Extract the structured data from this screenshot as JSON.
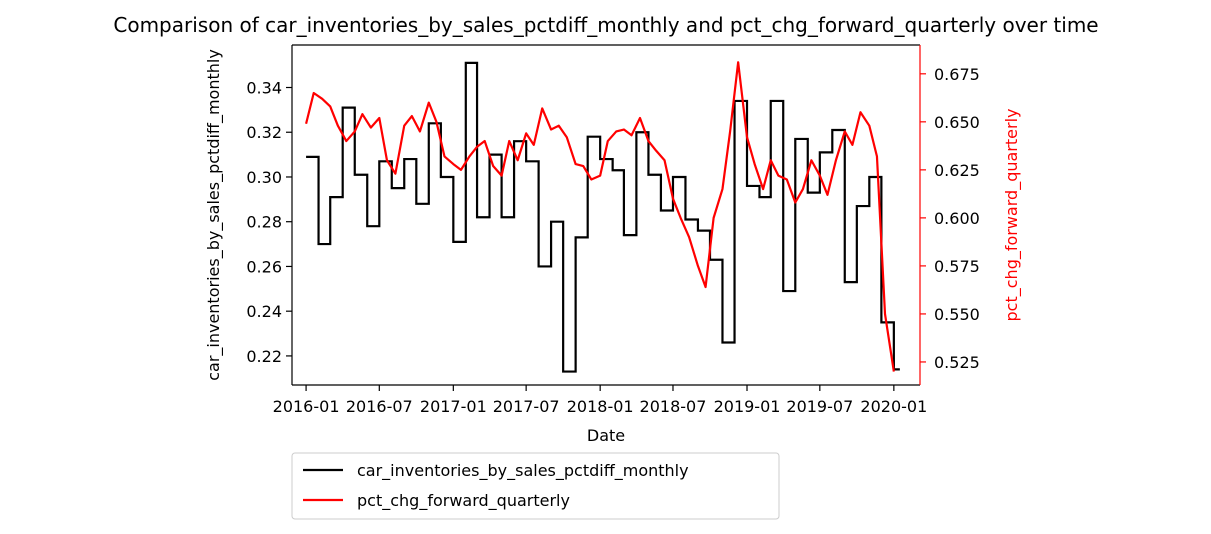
{
  "chart_data": {
    "type": "line",
    "title": "Comparison of car_inventories_by_sales_pctdiff_monthly and pct_chg_forward_quarterly over time",
    "xlabel": "Date",
    "ylabel_left": "car_inventories_by_sales_pctdiff_monthly",
    "ylabel_right": "pct_chg_forward_quarterly",
    "x_ticks": [
      "2016-01",
      "2016-07",
      "2017-01",
      "2017-07",
      "2018-01",
      "2018-07",
      "2019-01",
      "2019-07",
      "2020-01"
    ],
    "y_left_ticks": [
      "0.22",
      "0.24",
      "0.26",
      "0.28",
      "0.30",
      "0.32",
      "0.34"
    ],
    "y_right_ticks": [
      "0.525",
      "0.550",
      "0.575",
      "0.600",
      "0.625",
      "0.650",
      "0.675"
    ],
    "ylim_left": [
      0.207,
      0.359
    ],
    "ylim_right": [
      0.513,
      0.69
    ],
    "xlim": [
      "2015-11-27",
      "2020-03-06"
    ],
    "grid": false,
    "legend_position": "below",
    "colors": {
      "left_series": "#000000",
      "right_series": "#ff0000",
      "right_axis": "#ff0000"
    },
    "series": [
      {
        "name": "car_inventories_by_sales_pctdiff_monthly",
        "axis": "left",
        "x": [
          "2016-01-01",
          "2016-02-01",
          "2016-03-01",
          "2016-04-01",
          "2016-05-01",
          "2016-06-01",
          "2016-07-01",
          "2016-08-01",
          "2016-09-01",
          "2016-10-01",
          "2016-11-01",
          "2016-12-01",
          "2017-01-01",
          "2017-02-01",
          "2017-03-01",
          "2017-04-01",
          "2017-05-01",
          "2017-06-01",
          "2017-07-01",
          "2017-08-01",
          "2017-09-01",
          "2017-10-01",
          "2017-11-01",
          "2017-12-01",
          "2018-01-01",
          "2018-02-01",
          "2018-03-01",
          "2018-04-01",
          "2018-05-01",
          "2018-06-01",
          "2018-07-01",
          "2018-08-01",
          "2018-09-01",
          "2018-10-01",
          "2018-11-01",
          "2018-12-01",
          "2019-01-01",
          "2019-02-01",
          "2019-03-01",
          "2019-04-01",
          "2019-05-01",
          "2019-06-01",
          "2019-07-01",
          "2019-08-01",
          "2019-09-01",
          "2019-10-01",
          "2019-11-01",
          "2019-12-01",
          "2020-01-01"
        ],
        "values": [
          0.309,
          0.27,
          0.291,
          0.331,
          0.301,
          0.278,
          0.307,
          0.295,
          0.308,
          0.288,
          0.324,
          0.3,
          0.271,
          0.351,
          0.282,
          0.31,
          0.282,
          0.316,
          0.307,
          0.26,
          0.28,
          0.213,
          0.273,
          0.318,
          0.308,
          0.303,
          0.274,
          0.32,
          0.301,
          0.285,
          0.3,
          0.281,
          0.276,
          0.263,
          0.226,
          0.334,
          0.296,
          0.291,
          0.334,
          0.249,
          0.317,
          0.293,
          0.311,
          0.321,
          0.253,
          0.287,
          0.3,
          0.235,
          0.214
        ]
      },
      {
        "name": "pct_chg_forward_quarterly",
        "axis": "right",
        "x": [
          "2016-01-01",
          "2016-01-20",
          "2016-02-10",
          "2016-03-01",
          "2016-03-20",
          "2016-04-10",
          "2016-05-01",
          "2016-05-20",
          "2016-06-10",
          "2016-07-01",
          "2016-07-20",
          "2016-08-10",
          "2016-09-01",
          "2016-09-20",
          "2016-10-10",
          "2016-11-01",
          "2016-11-20",
          "2016-12-10",
          "2017-01-01",
          "2017-01-20",
          "2017-02-10",
          "2017-03-01",
          "2017-03-20",
          "2017-04-10",
          "2017-05-01",
          "2017-05-20",
          "2017-06-10",
          "2017-07-01",
          "2017-07-20",
          "2017-08-10",
          "2017-09-01",
          "2017-09-20",
          "2017-10-10",
          "2017-11-01",
          "2017-11-20",
          "2017-12-10",
          "2018-01-01",
          "2018-01-20",
          "2018-02-10",
          "2018-03-01",
          "2018-03-20",
          "2018-04-10",
          "2018-05-01",
          "2018-05-20",
          "2018-06-10",
          "2018-07-01",
          "2018-07-20",
          "2018-08-10",
          "2018-09-01",
          "2018-09-20",
          "2018-10-10",
          "2018-11-01",
          "2018-11-20",
          "2018-12-10",
          "2019-01-01",
          "2019-01-20",
          "2019-02-10",
          "2019-03-01",
          "2019-03-20",
          "2019-04-10",
          "2019-05-01",
          "2019-05-20",
          "2019-06-10",
          "2019-07-01",
          "2019-07-20",
          "2019-08-10",
          "2019-09-01",
          "2019-09-20",
          "2019-10-10",
          "2019-11-01",
          "2019-11-20",
          "2019-12-10",
          "2020-01-01"
        ],
        "values": [
          0.649,
          0.665,
          0.662,
          0.658,
          0.648,
          0.64,
          0.645,
          0.654,
          0.647,
          0.652,
          0.63,
          0.623,
          0.648,
          0.653,
          0.645,
          0.66,
          0.65,
          0.632,
          0.628,
          0.625,
          0.632,
          0.637,
          0.64,
          0.627,
          0.622,
          0.64,
          0.63,
          0.644,
          0.638,
          0.657,
          0.646,
          0.648,
          0.642,
          0.628,
          0.627,
          0.62,
          0.622,
          0.64,
          0.645,
          0.646,
          0.643,
          0.652,
          0.64,
          0.635,
          0.63,
          0.61,
          0.6,
          0.59,
          0.575,
          0.564,
          0.6,
          0.615,
          0.645,
          0.681,
          0.642,
          0.628,
          0.615,
          0.63,
          0.622,
          0.62,
          0.608,
          0.615,
          0.63,
          0.622,
          0.612,
          0.63,
          0.645,
          0.638,
          0.655,
          0.648,
          0.632,
          0.55,
          0.52
        ]
      }
    ]
  }
}
